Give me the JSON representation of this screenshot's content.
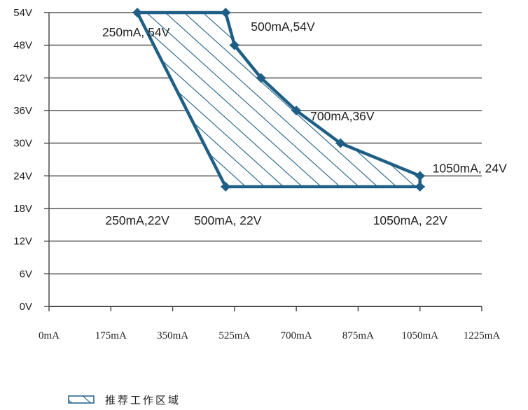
{
  "chart_data": {
    "type": "area",
    "y_ticks": [
      "0V",
      "6V",
      "12V",
      "18V",
      "24V",
      "30V",
      "36V",
      "42V",
      "48V",
      "54V"
    ],
    "x_ticks": [
      "0mA",
      "175mA",
      "350mA",
      "525mA",
      "700mA",
      "875mA",
      "1050mA",
      "1225mA"
    ],
    "xlim": [
      0,
      1225
    ],
    "ylim": [
      0,
      54
    ],
    "grid": "horizontal",
    "series": [
      {
        "name": "推荐工作区域",
        "x": [
          250,
          500,
          525,
          600,
          700,
          825,
          1050,
          1050,
          500
        ],
        "y": [
          54,
          54,
          48,
          42,
          36,
          30,
          24,
          22,
          22
        ],
        "fill": "hatched",
        "color": "#1f5f86"
      }
    ],
    "annotations": [
      {
        "text": "250mA, 54V",
        "x": 250,
        "y": 54
      },
      {
        "text": "500mA,54V",
        "x": 500,
        "y": 54
      },
      {
        "text": "700mA,36V",
        "x": 700,
        "y": 36
      },
      {
        "text": "1050mA, 24V",
        "x": 1050,
        "y": 24
      },
      {
        "text": "250mA,22V",
        "x": 250,
        "y": 22
      },
      {
        "text": "500mA, 22V",
        "x": 500,
        "y": 22
      },
      {
        "text": "1050mA, 22V",
        "x": 1050,
        "y": 22
      }
    ],
    "legend": {
      "label": "推荐工作区域",
      "position": "bottom-left"
    }
  }
}
